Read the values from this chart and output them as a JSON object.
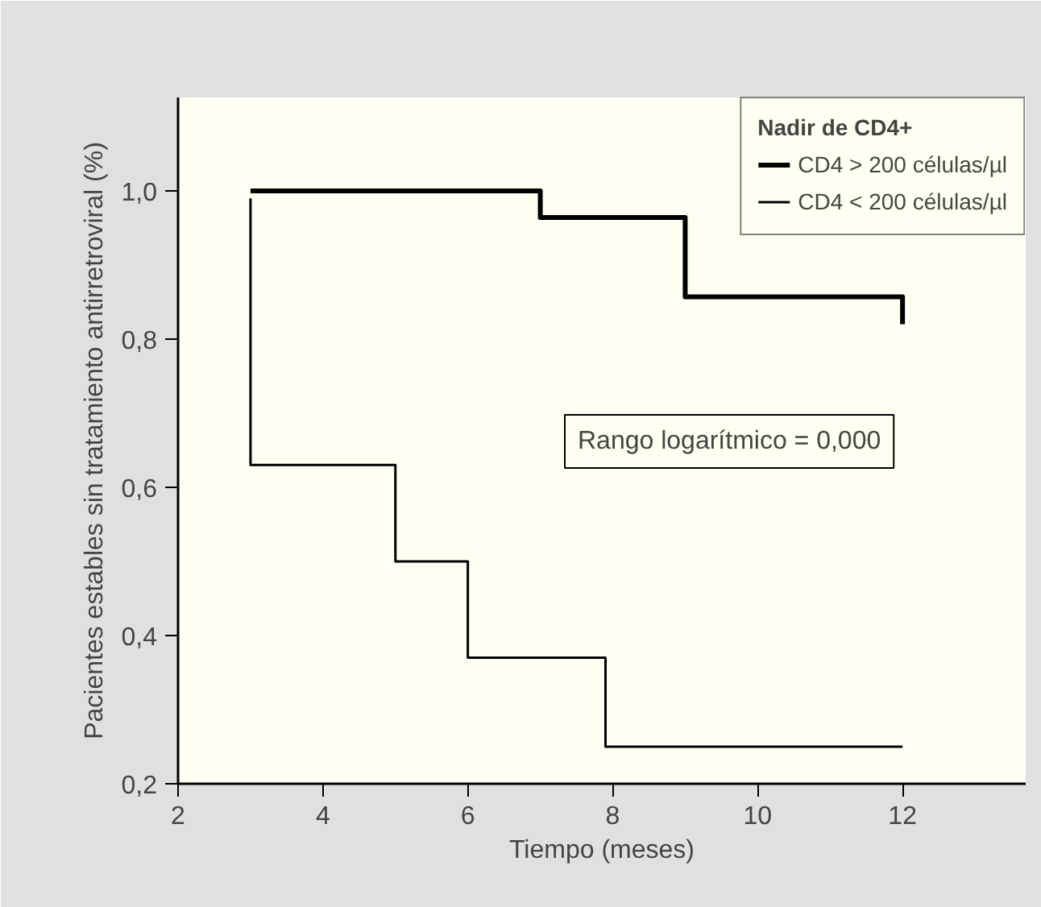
{
  "chart_data": {
    "type": "step",
    "xlabel": "Tiempo (meses)",
    "ylabel": "Pacientes estables sin tratamiento antirretroviral (%)",
    "legend_title": "Nadir de CD4+",
    "series": [
      {
        "name": "CD4 > 200 células/µl",
        "color": "#000000",
        "x": [
          3,
          7,
          9,
          12,
          12
        ],
        "values": [
          1.0,
          0.964,
          0.857,
          0.857,
          0.82
        ]
      },
      {
        "name": "CD4 < 200 células/µl",
        "color": "#000000",
        "x": [
          3,
          3,
          5,
          6,
          7.9,
          12
        ],
        "values": [
          0.99,
          0.63,
          0.5,
          0.37,
          0.25,
          0.25
        ]
      }
    ],
    "xlim": [
      2,
      13.7
    ],
    "xticks": [
      2,
      4,
      6,
      8,
      10,
      12
    ],
    "ylim": [
      0.2,
      1.126
    ],
    "yticks": [
      {
        "value": 0.2,
        "label": "0,2"
      },
      {
        "value": 0.4,
        "label": "0,4"
      },
      {
        "value": 0.6,
        "label": "0,6"
      },
      {
        "value": 0.8,
        "label": "0,8"
      },
      {
        "value": 1.0,
        "label": "1,0"
      }
    ],
    "annotations": [
      "Rango logarítmico = 0,000"
    ],
    "grid": false,
    "legend": "top right",
    "line_style": "solid",
    "marker": "none"
  }
}
